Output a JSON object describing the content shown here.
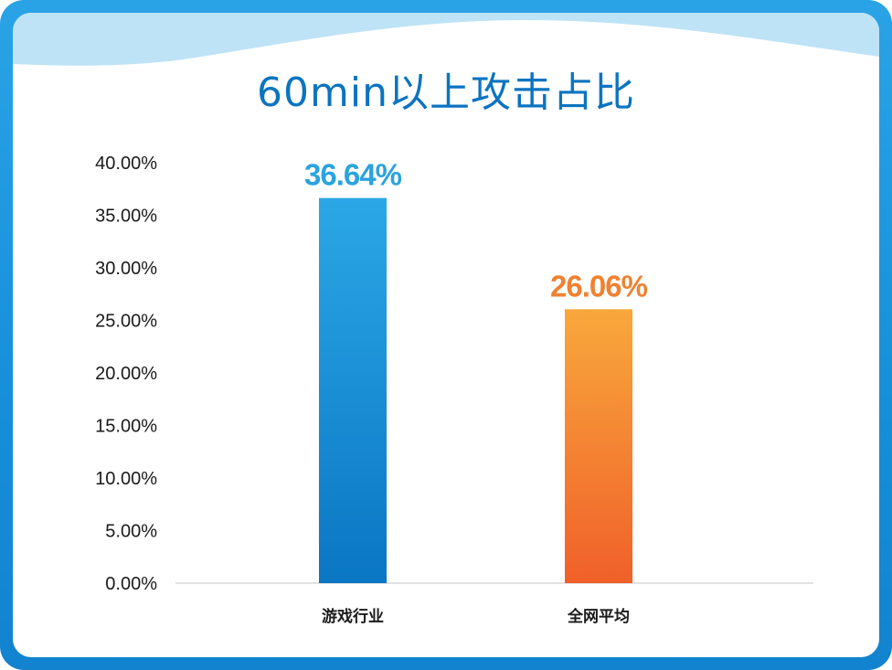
{
  "chart_data": {
    "type": "bar",
    "title": "60min以上攻击占比",
    "categories": [
      "游戏行业",
      "全网平均"
    ],
    "values": [
      36.64,
      26.06
    ],
    "data_labels": [
      "36.64%",
      "26.06%"
    ],
    "y_ticks": [
      "0.00%",
      "5.00%",
      "10.00%",
      "15.00%",
      "20.00%",
      "25.00%",
      "30.00%",
      "35.00%",
      "40.00%"
    ],
    "ylim": [
      0,
      40
    ],
    "xlabel": "",
    "ylabel": "",
    "grid": false,
    "colors": {
      "bar_1_top": "#2ba7e6",
      "bar_1_bottom": "#0a76c4",
      "bar_2_top": "#f8a83c",
      "bar_2_bottom": "#f0602a",
      "label_1": "#2aa3e0",
      "label_2": "#ef8232",
      "title": "#0b74c0"
    }
  }
}
